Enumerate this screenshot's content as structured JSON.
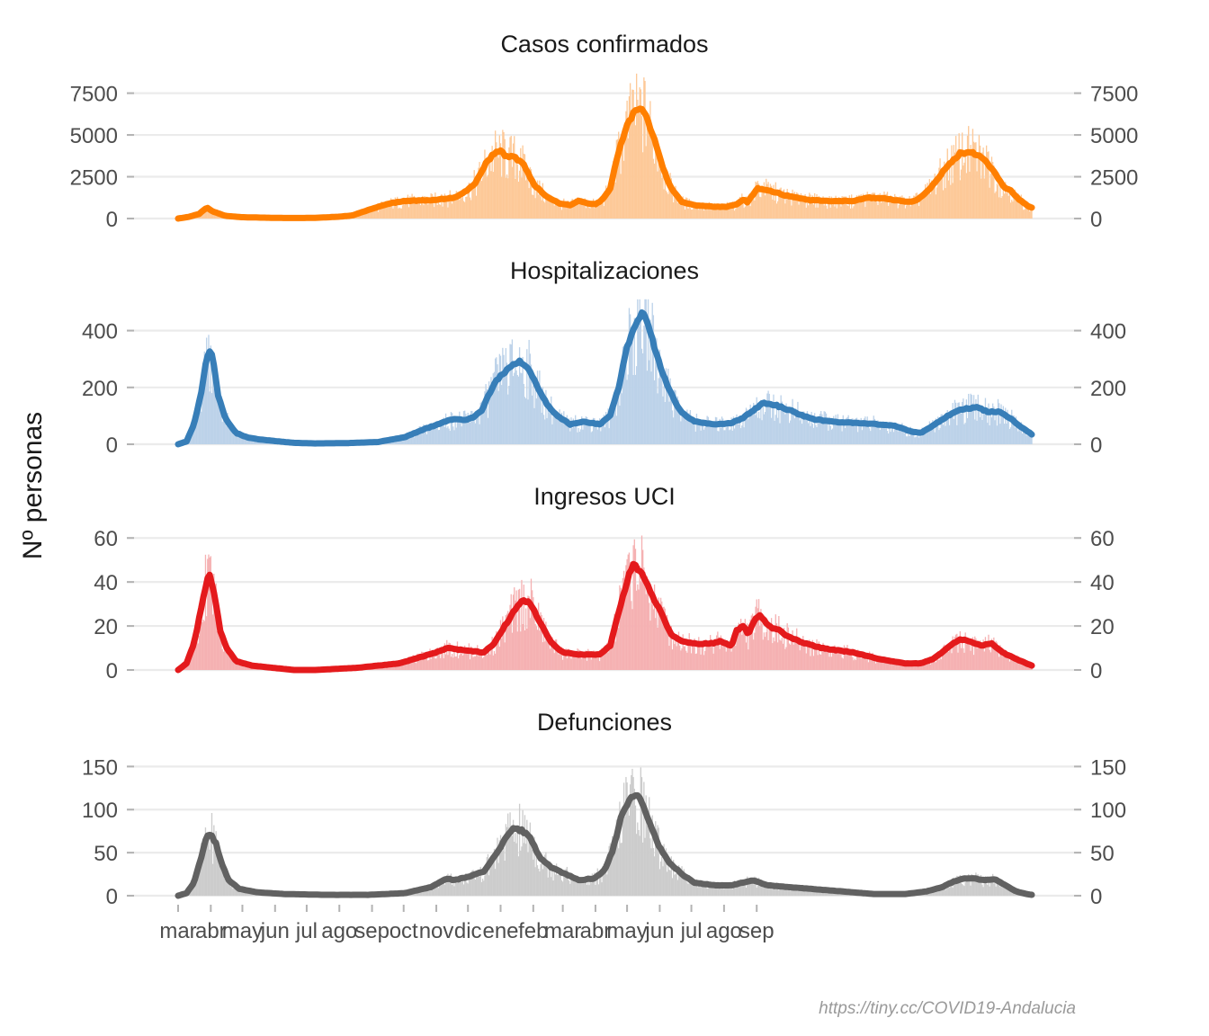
{
  "ylabel": "Nº personas",
  "caption": "https://tiny.cc/COVID19-Andalucia",
  "x_axis": {
    "ticks": [
      "mar",
      "abr",
      "may",
      "jun",
      "jul",
      "ago",
      "sep",
      "oct",
      "nov",
      "dic",
      "ene",
      "feb",
      "mar",
      "abr",
      "may",
      "jun",
      "jul",
      "ago",
      "sep"
    ]
  },
  "chart_data": [
    {
      "type": "bar+line",
      "title": "Casos confirmados",
      "color": "#ff7f00",
      "bar_color": "#fdc998",
      "yticks": [
        0,
        2500,
        5000,
        7500
      ],
      "ylim": [
        0,
        8500
      ],
      "series_points": [
        [
          0,
          0
        ],
        [
          10,
          100
        ],
        [
          20,
          280
        ],
        [
          25,
          550
        ],
        [
          28,
          620
        ],
        [
          33,
          420
        ],
        [
          45,
          160
        ],
        [
          60,
          80
        ],
        [
          90,
          40
        ],
        [
          110,
          30
        ],
        [
          130,
          40
        ],
        [
          150,
          100
        ],
        [
          165,
          180
        ],
        [
          180,
          500
        ],
        [
          190,
          700
        ],
        [
          200,
          900
        ],
        [
          215,
          1050
        ],
        [
          240,
          1100
        ],
        [
          262,
          1250
        ],
        [
          275,
          1700
        ],
        [
          283,
          2200
        ],
        [
          292,
          3300
        ],
        [
          300,
          3900
        ],
        [
          306,
          4000
        ],
        [
          312,
          3700
        ],
        [
          320,
          3650
        ],
        [
          328,
          3200
        ],
        [
          338,
          2000
        ],
        [
          350,
          1300
        ],
        [
          362,
          900
        ],
        [
          372,
          800
        ],
        [
          380,
          1050
        ],
        [
          390,
          900
        ],
        [
          396,
          850
        ],
        [
          403,
          1150
        ],
        [
          410,
          1800
        ],
        [
          418,
          4000
        ],
        [
          425,
          5400
        ],
        [
          432,
          6300
        ],
        [
          437,
          6600
        ],
        [
          444,
          6200
        ],
        [
          452,
          4700
        ],
        [
          460,
          3000
        ],
        [
          468,
          1800
        ],
        [
          478,
          1000
        ],
        [
          490,
          800
        ],
        [
          510,
          700
        ],
        [
          520,
          700
        ],
        [
          530,
          850
        ],
        [
          537,
          1150
        ],
        [
          540,
          950
        ],
        [
          545,
          1400
        ],
        [
          550,
          1800
        ],
        [
          560,
          1700
        ],
        [
          575,
          1400
        ],
        [
          600,
          1100
        ],
        [
          620,
          1050
        ],
        [
          640,
          1050
        ],
        [
          655,
          1250
        ],
        [
          670,
          1200
        ],
        [
          686,
          1050
        ],
        [
          695,
          1000
        ],
        [
          702,
          1150
        ],
        [
          712,
          1700
        ],
        [
          722,
          2500
        ],
        [
          732,
          3300
        ],
        [
          742,
          3900
        ],
        [
          752,
          4000
        ],
        [
          760,
          3750
        ],
        [
          768,
          3300
        ],
        [
          775,
          2700
        ],
        [
          780,
          2200
        ],
        [
          785,
          1800
        ],
        [
          790,
          1700
        ],
        [
          795,
          1300
        ],
        [
          801,
          1000
        ],
        [
          807,
          700
        ],
        [
          810,
          650
        ]
      ],
      "series_note": "x in days since 1 mar 2020; y in persons (7-day average)"
    },
    {
      "type": "bar+line",
      "title": "Hospitalizaciones",
      "color": "#377eb8",
      "bar_color": "#bcd2e9",
      "yticks": [
        0,
        200,
        400
      ],
      "ylim": [
        0,
        500
      ],
      "series_points": [
        [
          0,
          0
        ],
        [
          8,
          10
        ],
        [
          15,
          70
        ],
        [
          22,
          180
        ],
        [
          27,
          300
        ],
        [
          30,
          330
        ],
        [
          33,
          300
        ],
        [
          38,
          170
        ],
        [
          45,
          90
        ],
        [
          55,
          40
        ],
        [
          65,
          25
        ],
        [
          75,
          18
        ],
        [
          90,
          12
        ],
        [
          110,
          5
        ],
        [
          130,
          3
        ],
        [
          160,
          4
        ],
        [
          190,
          8
        ],
        [
          215,
          25
        ],
        [
          235,
          55
        ],
        [
          250,
          75
        ],
        [
          262,
          90
        ],
        [
          272,
          85
        ],
        [
          280,
          95
        ],
        [
          288,
          120
        ],
        [
          295,
          175
        ],
        [
          302,
          225
        ],
        [
          310,
          255
        ],
        [
          318,
          280
        ],
        [
          325,
          290
        ],
        [
          332,
          270
        ],
        [
          340,
          210
        ],
        [
          350,
          140
        ],
        [
          360,
          100
        ],
        [
          372,
          70
        ],
        [
          385,
          80
        ],
        [
          400,
          70
        ],
        [
          410,
          100
        ],
        [
          418,
          200
        ],
        [
          425,
          330
        ],
        [
          432,
          400
        ],
        [
          437,
          450
        ],
        [
          441,
          460
        ],
        [
          447,
          410
        ],
        [
          455,
          300
        ],
        [
          463,
          220
        ],
        [
          470,
          160
        ],
        [
          478,
          110
        ],
        [
          490,
          80
        ],
        [
          510,
          70
        ],
        [
          525,
          75
        ],
        [
          535,
          90
        ],
        [
          548,
          125
        ],
        [
          555,
          145
        ],
        [
          565,
          140
        ],
        [
          580,
          120
        ],
        [
          600,
          90
        ],
        [
          620,
          80
        ],
        [
          640,
          75
        ],
        [
          660,
          72
        ],
        [
          680,
          65
        ],
        [
          695,
          45
        ],
        [
          705,
          40
        ],
        [
          718,
          70
        ],
        [
          730,
          100
        ],
        [
          745,
          125
        ],
        [
          758,
          130
        ],
        [
          768,
          115
        ],
        [
          780,
          115
        ],
        [
          790,
          90
        ],
        [
          800,
          60
        ],
        [
          810,
          35
        ]
      ],
      "series_note": "x in days since 1 mar 2020; y in persons (7-day average)"
    },
    {
      "type": "bar+line",
      "title": "Ingresos UCI",
      "color": "#e41a1c",
      "bar_color": "#f5b1b2",
      "yticks": [
        0,
        20,
        40,
        60
      ],
      "ylim": [
        0,
        65
      ],
      "series_points": [
        [
          0,
          0
        ],
        [
          8,
          3
        ],
        [
          15,
          12
        ],
        [
          22,
          28
        ],
        [
          27,
          40
        ],
        [
          30,
          43
        ],
        [
          34,
          35
        ],
        [
          40,
          18
        ],
        [
          46,
          10
        ],
        [
          55,
          4
        ],
        [
          70,
          2
        ],
        [
          90,
          1
        ],
        [
          110,
          0
        ],
        [
          130,
          0
        ],
        [
          170,
          1
        ],
        [
          210,
          3
        ],
        [
          245,
          8
        ],
        [
          256,
          10
        ],
        [
          270,
          9
        ],
        [
          290,
          8
        ],
        [
          300,
          12
        ],
        [
          310,
          20
        ],
        [
          320,
          28
        ],
        [
          327,
          32
        ],
        [
          335,
          30
        ],
        [
          345,
          20
        ],
        [
          355,
          12
        ],
        [
          365,
          8
        ],
        [
          380,
          7
        ],
        [
          400,
          7
        ],
        [
          410,
          11
        ],
        [
          420,
          30
        ],
        [
          427,
          42
        ],
        [
          432,
          48
        ],
        [
          440,
          44
        ],
        [
          450,
          34
        ],
        [
          460,
          24
        ],
        [
          468,
          16
        ],
        [
          478,
          13
        ],
        [
          490,
          12
        ],
        [
          505,
          12
        ],
        [
          515,
          13
        ],
        [
          525,
          11
        ],
        [
          530,
          18
        ],
        [
          537,
          20
        ],
        [
          541,
          16
        ],
        [
          546,
          22
        ],
        [
          552,
          25
        ],
        [
          560,
          20
        ],
        [
          570,
          18
        ],
        [
          580,
          15
        ],
        [
          595,
          12
        ],
        [
          610,
          10
        ],
        [
          640,
          8
        ],
        [
          665,
          5
        ],
        [
          690,
          3
        ],
        [
          705,
          3
        ],
        [
          716,
          5
        ],
        [
          725,
          8
        ],
        [
          735,
          12
        ],
        [
          742,
          14
        ],
        [
          752,
          13
        ],
        [
          762,
          11
        ],
        [
          772,
          12
        ],
        [
          782,
          8
        ],
        [
          795,
          5
        ],
        [
          805,
          3
        ],
        [
          810,
          2
        ]
      ],
      "series_note": "x in days since 1 mar 2020; y in persons (7-day average)"
    },
    {
      "type": "bar+line",
      "title": "Defunciones",
      "color": "#616161",
      "bar_color": "#cccccc",
      "yticks": [
        0,
        50,
        100,
        150
      ],
      "ylim": [
        0,
        165
      ],
      "series_points": [
        [
          0,
          0
        ],
        [
          8,
          3
        ],
        [
          15,
          15
        ],
        [
          22,
          45
        ],
        [
          27,
          68
        ],
        [
          31,
          72
        ],
        [
          36,
          60
        ],
        [
          42,
          35
        ],
        [
          48,
          18
        ],
        [
          58,
          8
        ],
        [
          75,
          4
        ],
        [
          100,
          2
        ],
        [
          140,
          1
        ],
        [
          180,
          1
        ],
        [
          215,
          3
        ],
        [
          240,
          10
        ],
        [
          255,
          20
        ],
        [
          262,
          18
        ],
        [
          275,
          22
        ],
        [
          290,
          28
        ],
        [
          300,
          45
        ],
        [
          310,
          65
        ],
        [
          318,
          78
        ],
        [
          326,
          76
        ],
        [
          334,
          68
        ],
        [
          343,
          45
        ],
        [
          355,
          32
        ],
        [
          368,
          25
        ],
        [
          380,
          18
        ],
        [
          395,
          20
        ],
        [
          405,
          30
        ],
        [
          413,
          55
        ],
        [
          420,
          90
        ],
        [
          428,
          112
        ],
        [
          433,
          118
        ],
        [
          439,
          112
        ],
        [
          446,
          90
        ],
        [
          455,
          60
        ],
        [
          465,
          40
        ],
        [
          478,
          25
        ],
        [
          490,
          15
        ],
        [
          510,
          12
        ],
        [
          525,
          12
        ],
        [
          535,
          15
        ],
        [
          545,
          18
        ],
        [
          560,
          12
        ],
        [
          580,
          10
        ],
        [
          600,
          8
        ],
        [
          620,
          6
        ],
        [
          640,
          4
        ],
        [
          660,
          2
        ],
        [
          690,
          2
        ],
        [
          710,
          5
        ],
        [
          725,
          10
        ],
        [
          735,
          16
        ],
        [
          745,
          20
        ],
        [
          755,
          20
        ],
        [
          765,
          18
        ],
        [
          775,
          19
        ],
        [
          785,
          12
        ],
        [
          795,
          5
        ],
        [
          805,
          2
        ],
        [
          810,
          1
        ]
      ],
      "series_note": "x in days since 1 mar 2020; y in persons (7-day average)"
    }
  ]
}
